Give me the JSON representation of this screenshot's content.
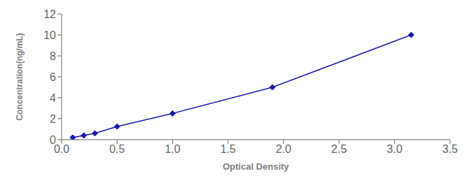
{
  "chart_data": {
    "type": "line",
    "x": [
      0.1,
      0.2,
      0.3,
      0.5,
      1.0,
      1.9,
      3.15
    ],
    "values": [
      0.2,
      0.4,
      0.6,
      1.25,
      2.5,
      5.0,
      10.0
    ],
    "color": "#1a1aaa",
    "marker": "diamond",
    "xlabel": "Optical Density",
    "ylabel": "Concentration(ng/mL)",
    "xlim": [
      0,
      3.5
    ],
    "ylim": [
      0,
      12
    ],
    "xticks": [
      {
        "value": 0,
        "label": "0.0"
      },
      0.5,
      {
        "value": 1,
        "label": "1.0"
      },
      1.5,
      {
        "value": 2,
        "label": "2.0"
      },
      2.5,
      {
        "value": 3,
        "label": "3.0"
      },
      3.5
    ],
    "yticks": [
      0,
      2,
      4,
      6,
      8,
      10,
      12
    ],
    "grid": false
  }
}
